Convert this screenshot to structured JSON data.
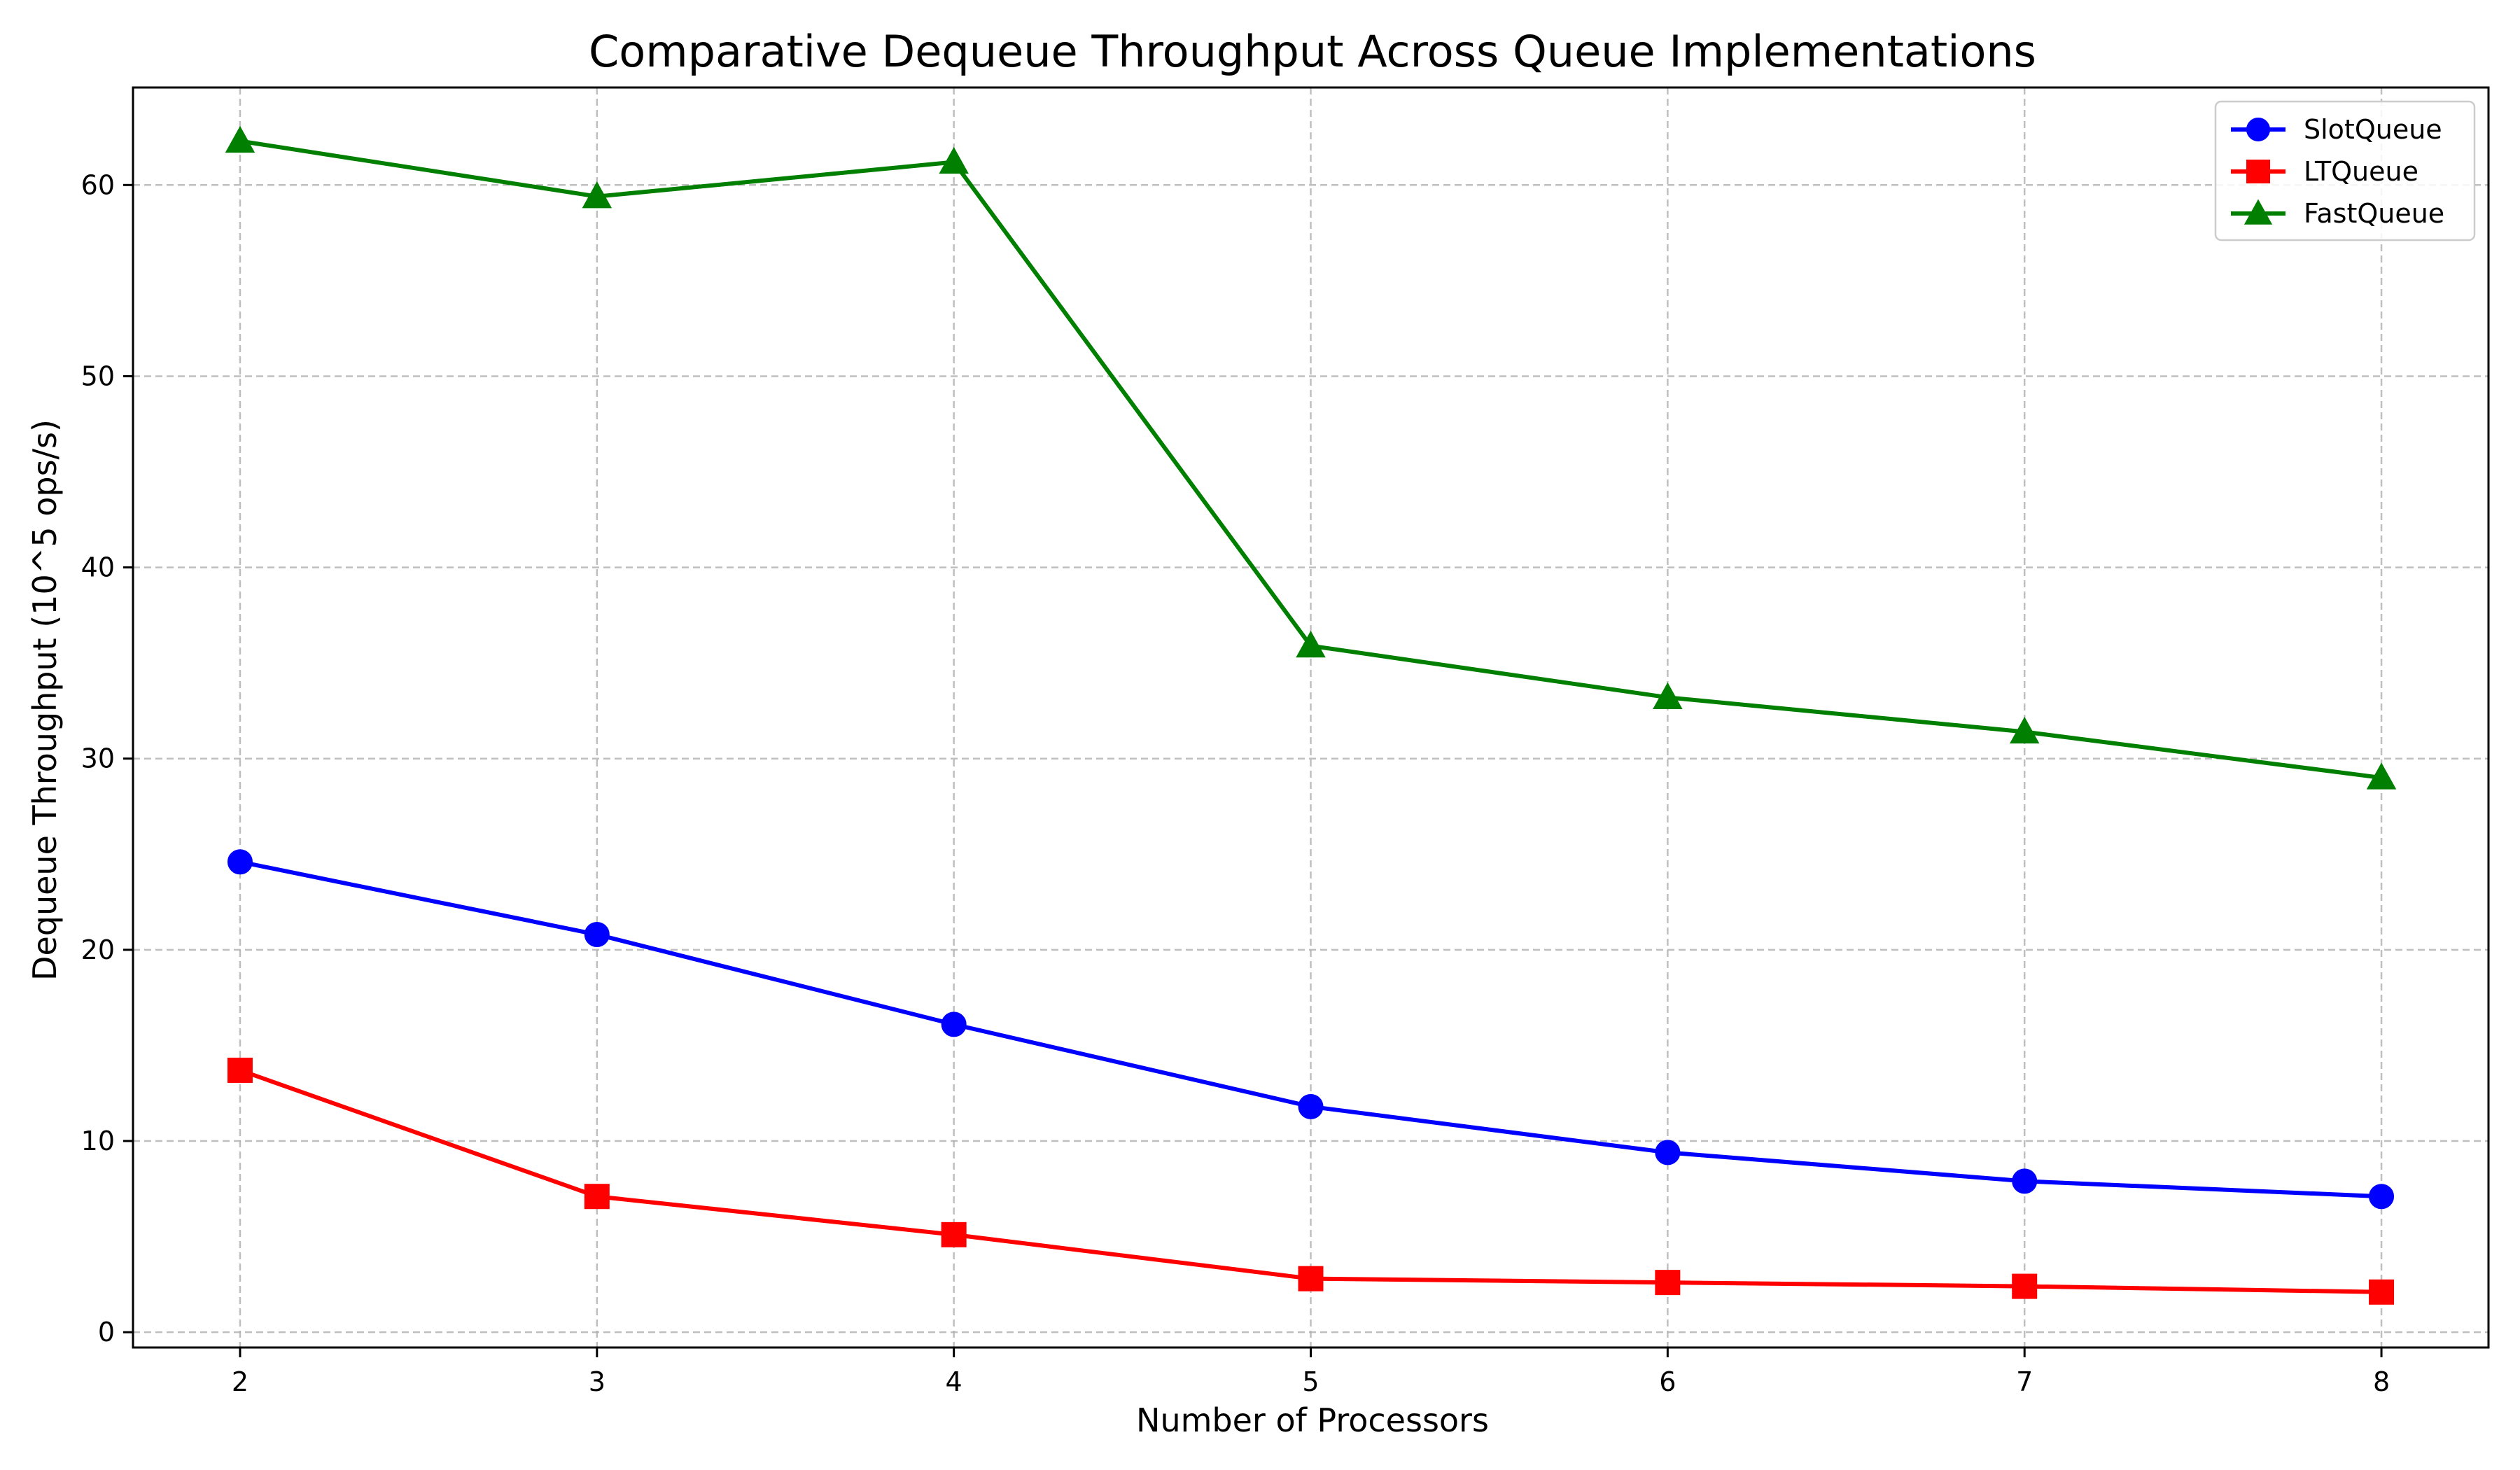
{
  "chart_data": {
    "type": "line",
    "title": "Comparative Dequeue Throughput Across Queue Implementations",
    "xlabel": "Number of Processors",
    "ylabel": "Dequeue Throughput (10^5 ops/s)",
    "x": [
      2,
      3,
      4,
      5,
      6,
      7,
      8
    ],
    "xlim": [
      1.7,
      8.3
    ],
    "ylim": [
      -0.8,
      65.1
    ],
    "yticks": [
      0,
      10,
      20,
      30,
      40,
      50,
      60
    ],
    "grid": true,
    "grid_style": "dashed",
    "legend_position": "top-right",
    "series": [
      {
        "name": "SlotQueue",
        "color": "#0000ff",
        "marker": "circle",
        "values": [
          24.6,
          20.8,
          16.1,
          11.8,
          9.4,
          7.9,
          7.1
        ]
      },
      {
        "name": "LTQueue",
        "color": "#ff0000",
        "marker": "square",
        "values": [
          13.7,
          7.1,
          5.1,
          2.8,
          2.6,
          2.4,
          2.1
        ]
      },
      {
        "name": "FastQueue",
        "color": "#007f00",
        "marker": "triangle",
        "values": [
          62.3,
          59.4,
          61.2,
          35.9,
          33.2,
          31.4,
          29.0
        ]
      }
    ]
  }
}
